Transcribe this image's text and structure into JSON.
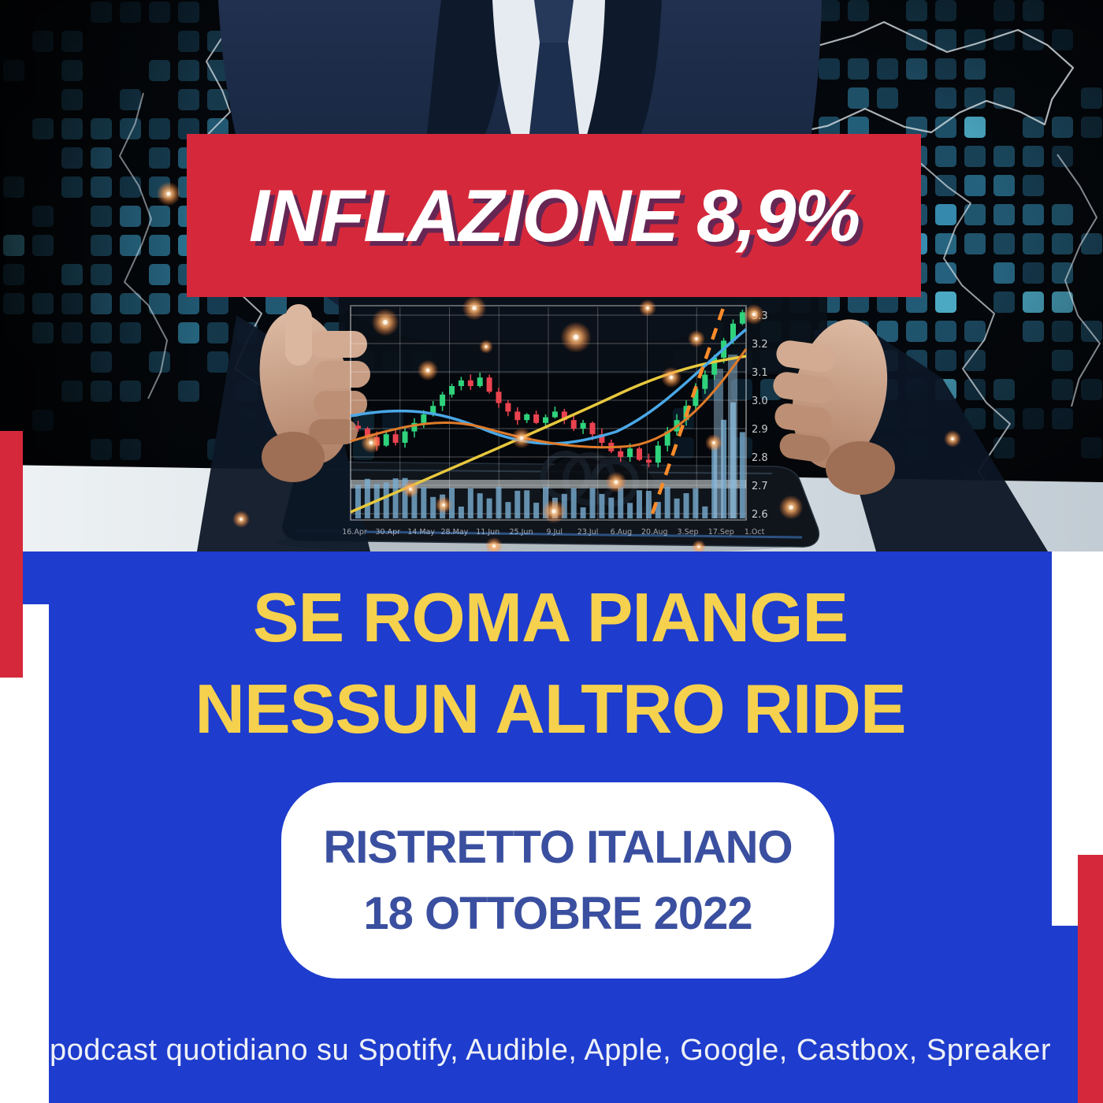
{
  "banner": {
    "label": "INFLAZIONE 8,9%"
  },
  "headline": {
    "line1": "SE ROMA PIANGE",
    "line2": "NESSUN ALTRO RIDE"
  },
  "badge": {
    "line1": "RISTRETTO ITALIANO",
    "line2": "18 OTTOBRE 2022"
  },
  "caption": {
    "text": "podcast quotidiano su Spotify, Audible, Apple, Google, Castbox, Spreaker"
  },
  "chart": {
    "type": "candlestick",
    "y_labels": [
      "3.3",
      "3.2",
      "3.1",
      "3.0",
      "2.9",
      "2.8",
      "2.7",
      "2.6"
    ],
    "x_labels": [
      "16.Apr",
      "30.Apr",
      "14.May",
      "28.May",
      "11.Jun",
      "25.Jun",
      "9.Jul",
      "23.Jul",
      "6.Aug",
      "20.Aug",
      "3.Sep",
      "17.Sep",
      "1.Oct"
    ]
  },
  "colors": {
    "banner_red": "#d5293b",
    "panel_blue": "#1e3ccd",
    "headline_yellow": "#f5d14e",
    "badge_text_blue": "#3a4f9f",
    "accent_red": "#d5293b",
    "caption_white": "#eef1f7",
    "banner_text_shadow": "#5c2656"
  }
}
